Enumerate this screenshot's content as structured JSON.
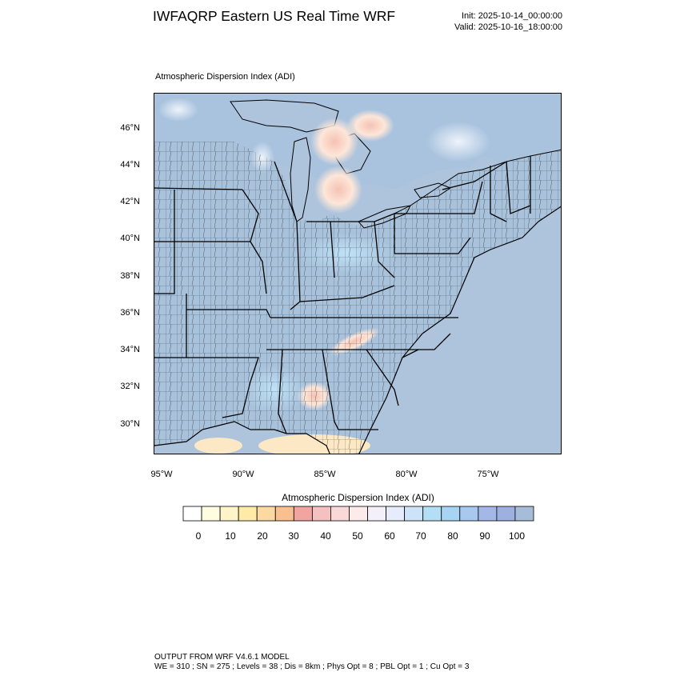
{
  "title": "IWFAQRP Eastern US Real Time WRF",
  "init_text": "Init: 2025-10-14_00:00:00",
  "valid_text": "Valid: 2025-10-16_18:00:00",
  "map_title": "Atmospheric Dispersion Index   (ADI)",
  "lat_labels": [
    "46°N",
    "44°N",
    "42°N",
    "40°N",
    "38°N",
    "36°N",
    "34°N",
    "32°N",
    "30°N"
  ],
  "lon_labels": [
    "95°W",
    "90°W",
    "85°W",
    "80°W",
    "75°W"
  ],
  "colorbar": {
    "title": "Atmospheric Dispersion Index  (ADI)",
    "tick_labels": [
      "0",
      "10",
      "20",
      "30",
      "40",
      "50",
      "60",
      "70",
      "80",
      "90",
      "100"
    ],
    "colors": [
      "#ffffff",
      "#fffde0",
      "#fff5c8",
      "#ffeaa8",
      "#fcd9a0",
      "#f8c08e",
      "#f2a4a0",
      "#f5c0c0",
      "#fad8d8",
      "#fdeaea",
      "#f4f0fa",
      "#e6ecfc",
      "#cde4f8",
      "#b4def6",
      "#a8d4f4",
      "#a8c8f0",
      "#a4b8e8",
      "#9eb0e0",
      "#a6bcd8"
    ]
  },
  "map_colors": {
    "land": "#a8c2dc",
    "water": "#aec4dc",
    "boundaries": "#000000"
  },
  "footer_line1": "OUTPUT FROM WRF V4.6.1 MODEL",
  "footer_line2": "WE = 310 ; SN = 275 ; Levels = 38 ; Dis = 8km ; Phys Opt = 8 ; PBL Opt = 1 ; Cu Opt = 3"
}
